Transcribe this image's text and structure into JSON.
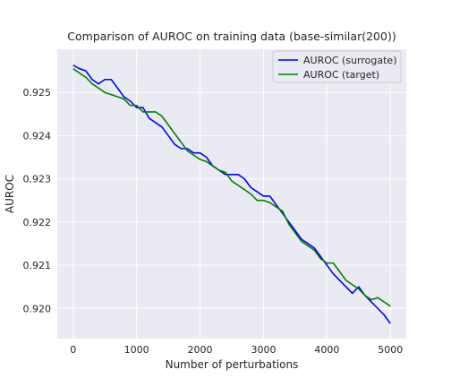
{
  "chart_data": {
    "type": "line",
    "title": "Comparison of AUROC on training data (base-similar(200))",
    "xlabel": "Number of perturbations",
    "ylabel": "AUROC",
    "xlim": [
      -250,
      5250
    ],
    "ylim": [
      0.9193,
      0.926
    ],
    "xticks": [
      0,
      1000,
      2000,
      3000,
      4000,
      5000
    ],
    "xtick_labels": [
      "0",
      "1000",
      "2000",
      "3000",
      "4000",
      "5000"
    ],
    "yticks": [
      0.92,
      0.921,
      0.922,
      0.923,
      0.924,
      0.925
    ],
    "ytick_labels": [
      "0.920",
      "0.921",
      "0.922",
      "0.923",
      "0.924",
      "0.925"
    ],
    "grid": true,
    "legend_position": "top-right",
    "series": [
      {
        "name": "AUROC (surrogate)",
        "color": "#0000ff",
        "x": [
          0,
          100,
          200,
          300,
          400,
          500,
          600,
          700,
          800,
          900,
          1000,
          1100,
          1200,
          1300,
          1400,
          1500,
          1600,
          1700,
          1800,
          1900,
          2000,
          2100,
          2200,
          2300,
          2400,
          2500,
          2600,
          2700,
          2800,
          2900,
          3000,
          3100,
          3200,
          3300,
          3400,
          3500,
          3600,
          3700,
          3800,
          3900,
          4000,
          4100,
          4200,
          4300,
          4400,
          4500,
          4600,
          4700,
          4800,
          4900,
          5000
        ],
        "y": [
          0.92563,
          0.92555,
          0.9255,
          0.9253,
          0.9252,
          0.9253,
          0.9253,
          0.9251,
          0.9249,
          0.9248,
          0.92465,
          0.92465,
          0.9244,
          0.9243,
          0.9242,
          0.924,
          0.9238,
          0.9237,
          0.9237,
          0.9236,
          0.9236,
          0.9235,
          0.9233,
          0.9232,
          0.9231,
          0.9231,
          0.9231,
          0.923,
          0.9228,
          0.9227,
          0.9226,
          0.9226,
          0.9224,
          0.9222,
          0.922,
          0.9218,
          0.9216,
          0.9215,
          0.9214,
          0.9212,
          0.921,
          0.9208,
          0.92065,
          0.9205,
          0.92035,
          0.9205,
          0.9203,
          0.92015,
          0.92,
          0.91985,
          0.91965
        ]
      },
      {
        "name": "AUROC (target)",
        "color": "#008000",
        "x": [
          0,
          100,
          200,
          300,
          400,
          500,
          600,
          700,
          800,
          900,
          1000,
          1100,
          1200,
          1300,
          1400,
          1500,
          1600,
          1700,
          1800,
          1900,
          2000,
          2100,
          2200,
          2300,
          2400,
          2500,
          2600,
          2700,
          2800,
          2900,
          3000,
          3100,
          3200,
          3300,
          3400,
          3500,
          3600,
          3700,
          3800,
          3900,
          4000,
          4100,
          4200,
          4300,
          4400,
          4500,
          4600,
          4700,
          4800,
          4900,
          5000
        ],
        "y": [
          0.92555,
          0.92545,
          0.92535,
          0.9252,
          0.9251,
          0.925,
          0.92495,
          0.9249,
          0.92485,
          0.9247,
          0.9247,
          0.92455,
          0.92455,
          0.92455,
          0.92445,
          0.92425,
          0.92405,
          0.92385,
          0.92365,
          0.92355,
          0.92345,
          0.9234,
          0.9233,
          0.9232,
          0.92315,
          0.92295,
          0.92285,
          0.92275,
          0.92265,
          0.9225,
          0.9225,
          0.92245,
          0.92235,
          0.92225,
          0.92195,
          0.92175,
          0.92155,
          0.92145,
          0.92135,
          0.92115,
          0.92105,
          0.92105,
          0.92085,
          0.92065,
          0.92055,
          0.92045,
          0.9203,
          0.9202,
          0.92025,
          0.92015,
          0.92005
        ]
      }
    ]
  }
}
